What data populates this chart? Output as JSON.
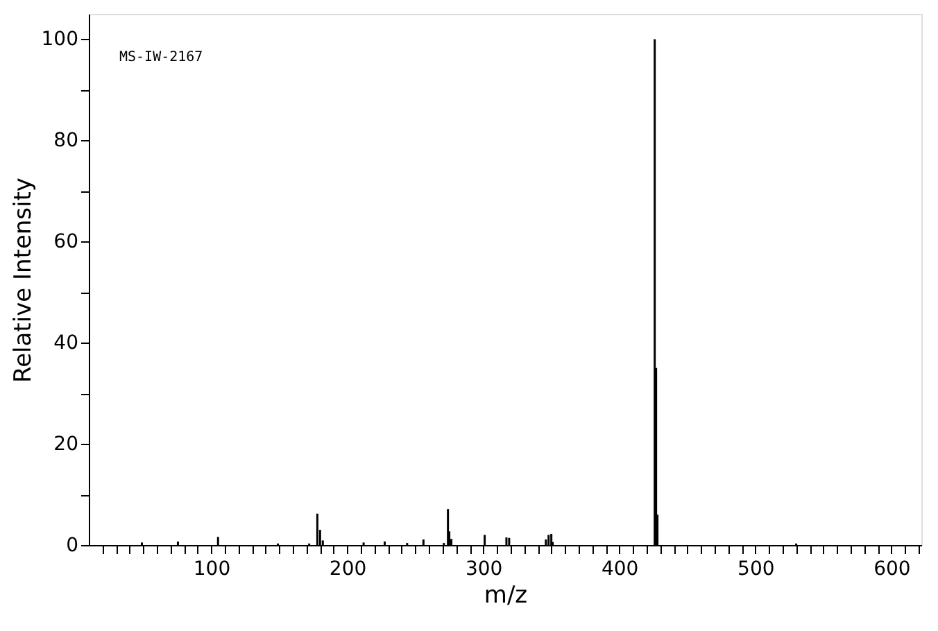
{
  "chart_data": {
    "type": "bar",
    "xlabel": "m/z",
    "ylabel": "Relative Intensity",
    "annotations": [
      "MS-IW-2167"
    ],
    "x": [
      49,
      75.5,
      105,
      149,
      172,
      178,
      180,
      182,
      212,
      227.5,
      244,
      256,
      271,
      274,
      275,
      276.5,
      301,
      317,
      319,
      346,
      348,
      350,
      351,
      426,
      427,
      428,
      530
    ],
    "values": [
      0.5,
      0.7,
      1.6,
      0.3,
      0.3,
      6.2,
      3.0,
      0.9,
      0.5,
      0.7,
      0.4,
      1.1,
      0.4,
      7.1,
      2.7,
      1.2,
      2.0,
      1.5,
      1.4,
      1.1,
      2.0,
      2.2,
      0.6,
      100,
      35,
      6,
      0.3
    ],
    "color": "#000000",
    "xlim": [
      10,
      622
    ],
    "ylim": [
      0,
      105
    ],
    "xticks": [
      {
        "value": 20,
        "label": null
      },
      {
        "value": 30,
        "label": null
      },
      {
        "value": 40,
        "label": null
      },
      {
        "value": 50,
        "label": null
      },
      {
        "value": 60,
        "label": null
      },
      {
        "value": 70,
        "label": null
      },
      {
        "value": 80,
        "label": null
      },
      {
        "value": 90,
        "label": null
      },
      100,
      {
        "value": 110,
        "label": null
      },
      {
        "value": 120,
        "label": null
      },
      {
        "value": 130,
        "label": null
      },
      {
        "value": 140,
        "label": null
      },
      {
        "value": 150,
        "label": null
      },
      {
        "value": 160,
        "label": null
      },
      {
        "value": 170,
        "label": null
      },
      {
        "value": 180,
        "label": null
      },
      {
        "value": 190,
        "label": null
      },
      200,
      {
        "value": 210,
        "label": null
      },
      {
        "value": 220,
        "label": null
      },
      {
        "value": 230,
        "label": null
      },
      {
        "value": 240,
        "label": null
      },
      {
        "value": 250,
        "label": null
      },
      {
        "value": 260,
        "label": null
      },
      {
        "value": 270,
        "label": null
      },
      {
        "value": 280,
        "label": null
      },
      {
        "value": 290,
        "label": null
      },
      300,
      {
        "value": 310,
        "label": null
      },
      {
        "value": 320,
        "label": null
      },
      {
        "value": 330,
        "label": null
      },
      {
        "value": 340,
        "label": null
      },
      {
        "value": 350,
        "label": null
      },
      {
        "value": 360,
        "label": null
      },
      {
        "value": 370,
        "label": null
      },
      {
        "value": 380,
        "label": null
      },
      {
        "value": 390,
        "label": null
      },
      400,
      {
        "value": 410,
        "label": null
      },
      {
        "value": 420,
        "label": null
      },
      {
        "value": 430,
        "label": null
      },
      {
        "value": 440,
        "label": null
      },
      {
        "value": 450,
        "label": null
      },
      {
        "value": 460,
        "label": null
      },
      {
        "value": 470,
        "label": null
      },
      {
        "value": 480,
        "label": null
      },
      {
        "value": 490,
        "label": null
      },
      500,
      {
        "value": 510,
        "label": null
      },
      {
        "value": 520,
        "label": null
      },
      {
        "value": 530,
        "label": null
      },
      {
        "value": 540,
        "label": null
      },
      {
        "value": 550,
        "label": null
      },
      {
        "value": 560,
        "label": null
      },
      {
        "value": 570,
        "label": null
      },
      {
        "value": 580,
        "label": null
      },
      {
        "value": 590,
        "label": null
      },
      600,
      {
        "value": 610,
        "label": null
      },
      {
        "value": 620,
        "label": null
      }
    ],
    "yticks": [
      0,
      {
        "value": 10,
        "label": null
      },
      20,
      {
        "value": 30,
        "label": null
      },
      40,
      {
        "value": 50,
        "label": null
      },
      60,
      {
        "value": 70,
        "label": null
      },
      80,
      {
        "value": 90,
        "label": null
      },
      100
    ],
    "grid": false
  }
}
